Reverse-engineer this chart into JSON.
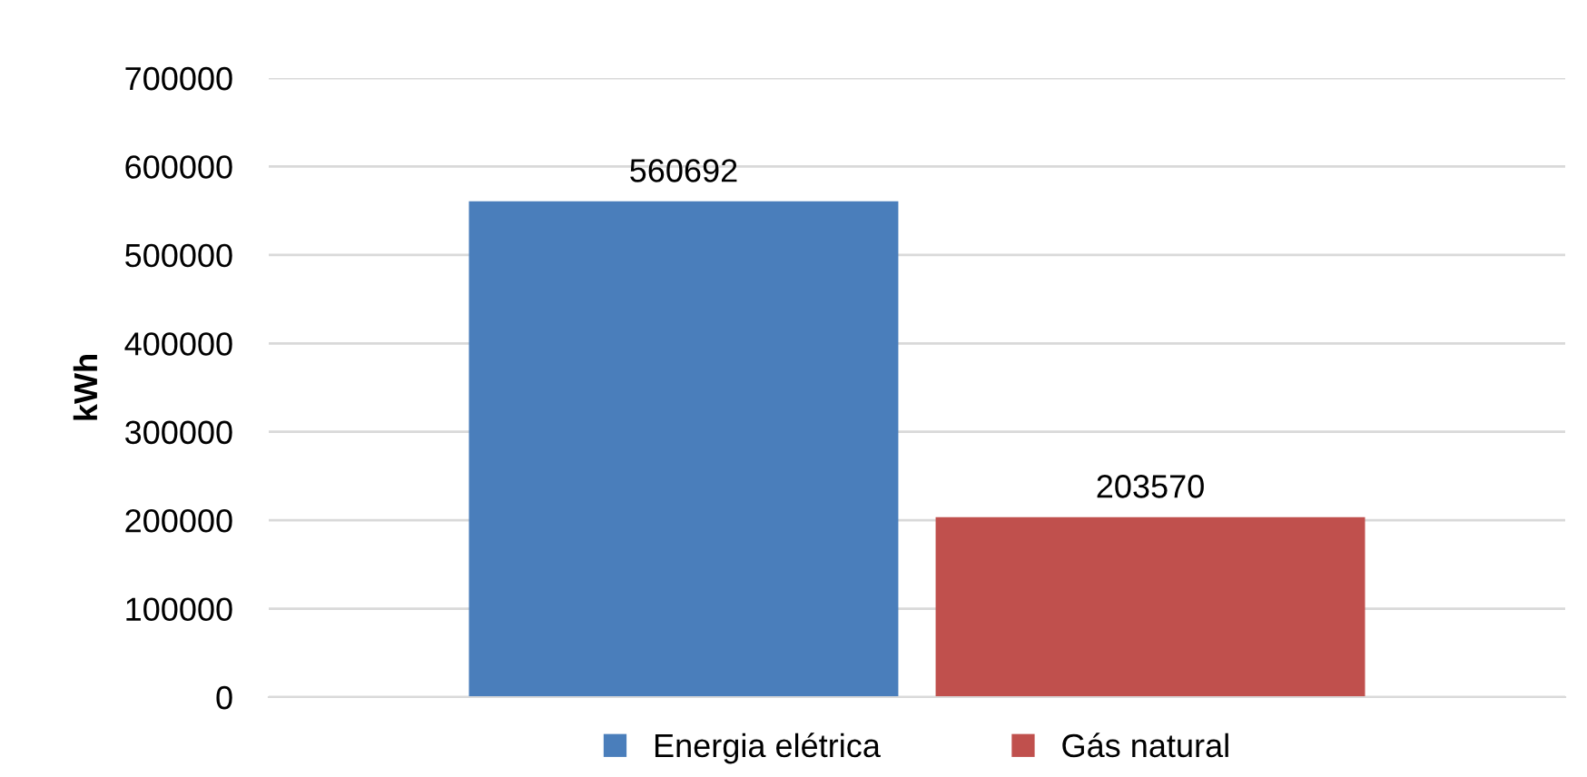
{
  "chart_data": {
    "type": "bar",
    "ylabel": "kWh",
    "categories": [
      null
    ],
    "series": [
      {
        "name": "Energia elétrica",
        "color": "#4a7ebb",
        "values": [
          560692
        ]
      },
      {
        "name": "Gás natural",
        "color": "#c0504d",
        "values": [
          203570
        ]
      }
    ],
    "ylim": [
      0,
      700000
    ],
    "yticks": [
      0,
      100000,
      200000,
      300000,
      400000,
      500000,
      600000,
      700000
    ],
    "grid": "y",
    "legend": "bottom",
    "data_labels": true
  }
}
